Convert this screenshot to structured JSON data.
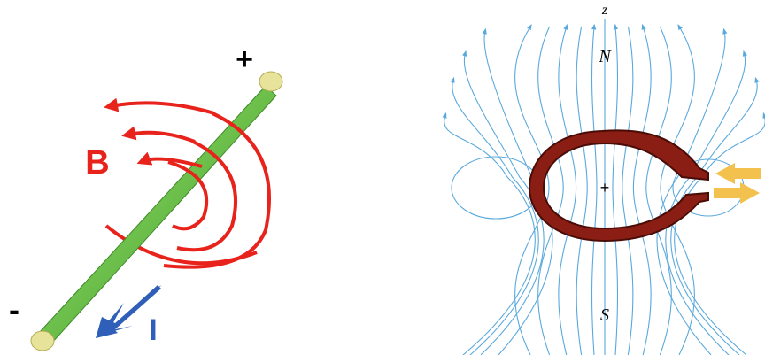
{
  "left": {
    "plus": "+",
    "field": "B",
    "minus": "-",
    "current": "I"
  },
  "right": {
    "axis": "z",
    "north": "N",
    "center": "+",
    "south": "S"
  }
}
